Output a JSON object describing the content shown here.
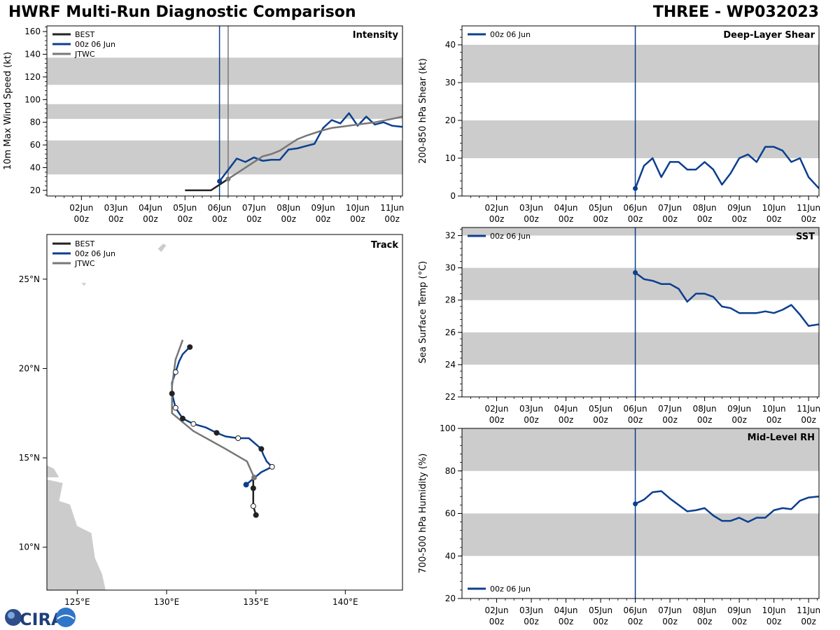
{
  "header": {
    "title": "HWRF Multi-Run Diagnostic Comparison",
    "storm": "THREE - WP032023"
  },
  "colors": {
    "best": "#222222",
    "run": "#0b3f8f",
    "jtwc": "#777777",
    "shade": "#cccccc",
    "land": "#cccccc"
  },
  "time_axis": {
    "dates": [
      "02Jun",
      "03Jun",
      "04Jun",
      "05Jun",
      "06Jun",
      "07Jun",
      "08Jun",
      "09Jun",
      "10Jun",
      "11Jun"
    ],
    "hour": "00z"
  },
  "logo": {
    "text": "CIRA"
  },
  "chart_data": [
    {
      "id": "intensity",
      "type": "line",
      "title": "Intensity",
      "ylabel": "10m Max Wind Speed (kt)",
      "xlim": [
        1.0,
        11.3
      ],
      "ylim": [
        15,
        165
      ],
      "yticks": [
        20,
        40,
        60,
        80,
        100,
        120,
        140,
        160
      ],
      "bands": [
        [
          34,
          64
        ],
        [
          83,
          96
        ],
        [
          113,
          137
        ]
      ],
      "vlines": [
        {
          "x": 6.0,
          "color": "run"
        },
        {
          "x": 6.25,
          "color": "jtwc"
        }
      ],
      "legend": [
        "BEST",
        "00z 06 Jun",
        "JTWC"
      ],
      "series": [
        {
          "name": "BEST",
          "color": "best",
          "x": [
            5.0,
            5.25,
            5.5,
            5.75,
            6.0,
            6.25
          ],
          "y": [
            20,
            20,
            20,
            20,
            25,
            30
          ]
        },
        {
          "name": "00z 06 Jun",
          "color": "run",
          "marker_start": true,
          "x": [
            6.0,
            6.25,
            6.5,
            6.75,
            7.0,
            7.25,
            7.5,
            7.75,
            8.0,
            8.25,
            8.5,
            8.75,
            9.0,
            9.25,
            9.5,
            9.75,
            10.0,
            10.25,
            10.5,
            10.75,
            11.0,
            11.3
          ],
          "y": [
            28,
            38,
            48,
            45,
            49,
            46,
            47,
            47,
            56,
            57,
            59,
            61,
            75,
            82,
            79,
            88,
            77,
            85,
            78,
            80,
            77,
            76
          ]
        },
        {
          "name": "JTWC",
          "color": "jtwc",
          "marker_start": true,
          "x": [
            6.25,
            6.5,
            7.0,
            7.25,
            7.5,
            7.75,
            8.0,
            8.25,
            8.5,
            9.0,
            9.25,
            9.5,
            10.0,
            10.5,
            11.0,
            11.3
          ],
          "y": [
            30,
            35,
            45,
            50,
            52,
            55,
            60,
            65,
            68,
            73,
            75,
            76,
            78,
            80,
            83,
            85
          ]
        }
      ]
    },
    {
      "id": "shear",
      "type": "line",
      "title": "Deep-Layer Shear",
      "ylabel": "200-850 hPa Shear (kt)",
      "xlim": [
        1.0,
        11.3
      ],
      "ylim": [
        0,
        45
      ],
      "yticks": [
        0,
        10,
        20,
        30,
        40
      ],
      "bands": [
        [
          10,
          20
        ],
        [
          30,
          40
        ]
      ],
      "vlines": [
        {
          "x": 6.0,
          "color": "run"
        }
      ],
      "legend": [
        "00z 06 Jun"
      ],
      "series": [
        {
          "name": "00z 06 Jun",
          "color": "run",
          "marker_start": true,
          "x": [
            6.0,
            6.25,
            6.5,
            6.75,
            7.0,
            7.25,
            7.5,
            7.75,
            8.0,
            8.25,
            8.5,
            8.75,
            9.0,
            9.25,
            9.5,
            9.75,
            10.0,
            10.25,
            10.5,
            10.75,
            11.0,
            11.3
          ],
          "y": [
            2,
            8,
            10,
            5,
            9,
            9,
            7,
            7,
            9,
            7,
            3,
            6,
            10,
            11,
            9,
            13,
            13,
            12,
            9,
            10,
            5,
            2
          ]
        }
      ]
    },
    {
      "id": "sst",
      "type": "line",
      "title": "SST",
      "ylabel": "Sea Surface Temp (°C)",
      "xlim": [
        1.0,
        11.3
      ],
      "ylim": [
        22,
        32.5
      ],
      "yticks": [
        22,
        24,
        26,
        28,
        30,
        32
      ],
      "bands": [
        [
          24,
          26
        ],
        [
          28,
          30
        ],
        [
          32,
          32.5
        ]
      ],
      "vlines": [
        {
          "x": 6.0,
          "color": "run"
        }
      ],
      "legend": [
        "00z 06 Jun"
      ],
      "series": [
        {
          "name": "00z 06 Jun",
          "color": "run",
          "marker_start": true,
          "x": [
            6.0,
            6.25,
            6.5,
            6.75,
            7.0,
            7.25,
            7.5,
            7.75,
            8.0,
            8.25,
            8.5,
            8.75,
            9.0,
            9.25,
            9.5,
            9.75,
            10.0,
            10.25,
            10.5,
            10.75,
            11.0,
            11.3
          ],
          "y": [
            29.7,
            29.3,
            29.2,
            29.0,
            29.0,
            28.7,
            27.9,
            28.4,
            28.4,
            28.2,
            27.6,
            27.5,
            27.2,
            27.2,
            27.2,
            27.3,
            27.2,
            27.4,
            27.7,
            27.1,
            26.4,
            26.5
          ]
        }
      ]
    },
    {
      "id": "rh",
      "type": "line",
      "title": "Mid-Level RH",
      "ylabel": "700-500 hPa Humidity (%)",
      "xlim": [
        1.0,
        11.3
      ],
      "ylim": [
        20,
        100
      ],
      "yticks": [
        20,
        40,
        60,
        80,
        100
      ],
      "bands": [
        [
          40,
          60
        ],
        [
          80,
          100
        ]
      ],
      "vlines": [
        {
          "x": 6.0,
          "color": "run"
        }
      ],
      "legend": [
        "00z 06 Jun"
      ],
      "legend_pos": "bottom-left",
      "series": [
        {
          "name": "00z 06 Jun",
          "color": "run",
          "marker_start": true,
          "x": [
            6.0,
            6.25,
            6.5,
            6.75,
            7.0,
            7.25,
            7.5,
            7.75,
            8.0,
            8.25,
            8.5,
            8.75,
            9.0,
            9.25,
            9.5,
            9.75,
            10.0,
            10.25,
            10.5,
            10.75,
            11.0,
            11.3
          ],
          "y": [
            64.5,
            66.5,
            70,
            70.5,
            67,
            64,
            61,
            61.5,
            62.5,
            59,
            56.5,
            56.5,
            58,
            56,
            58,
            58,
            61.5,
            62.5,
            62,
            66,
            67.5,
            68
          ]
        }
      ]
    },
    {
      "id": "track",
      "type": "scatter",
      "title": "Track",
      "xlim": [
        123.3,
        143.2
      ],
      "ylim": [
        7.6,
        27.5
      ],
      "xticks": [
        125,
        130,
        135,
        140
      ],
      "xticklabels": [
        "125°E",
        "130°E",
        "135°E",
        "140°E"
      ],
      "yticks": [
        10,
        15,
        20,
        25
      ],
      "yticklabels": [
        "10°N",
        "15°N",
        "20°N",
        "25°N"
      ],
      "legend": [
        "BEST",
        "00z 06 Jun",
        "JTWC"
      ],
      "series": [
        {
          "name": "BEST",
          "color": "best",
          "lon": [
            135.0,
            134.85,
            134.85,
            134.85
          ],
          "lat": [
            11.8,
            12.3,
            13.3,
            13.8
          ],
          "markers": [
            "filled",
            "open",
            "filled",
            "none"
          ]
        },
        {
          "name": "00z 06 Jun",
          "color": "run",
          "lon": [
            134.45,
            135.3,
            135.9,
            135.6,
            135.4,
            135.3,
            134.6,
            134.0,
            133.3,
            132.8,
            132.2,
            131.5,
            130.9,
            130.5,
            130.3,
            130.3,
            130.5,
            130.7,
            130.9,
            131.3
          ],
          "lat": [
            13.5,
            14.2,
            14.5,
            14.8,
            15.2,
            15.5,
            16.1,
            16.1,
            16.2,
            16.4,
            16.7,
            16.9,
            17.2,
            17.8,
            18.6,
            19.2,
            19.8,
            20.4,
            20.8,
            21.2
          ],
          "markers": [
            "filled",
            "none",
            "open",
            "none",
            "none",
            "filled",
            "none",
            "open",
            "none",
            "filled",
            "none",
            "open",
            "filled",
            "open",
            "filled",
            "none",
            "open",
            "none",
            "none",
            "filled"
          ]
        },
        {
          "name": "JTWC",
          "color": "jtwc",
          "lon": [
            134.9,
            134.5,
            133.3,
            131.5,
            130.3,
            130.3,
            130.5,
            130.9
          ],
          "lat": [
            13.9,
            14.8,
            15.5,
            16.5,
            17.5,
            19.0,
            20.5,
            21.6
          ],
          "markers": [
            "filled",
            "none",
            "none",
            "none",
            "none",
            "none",
            "none",
            "none"
          ]
        }
      ]
    }
  ]
}
